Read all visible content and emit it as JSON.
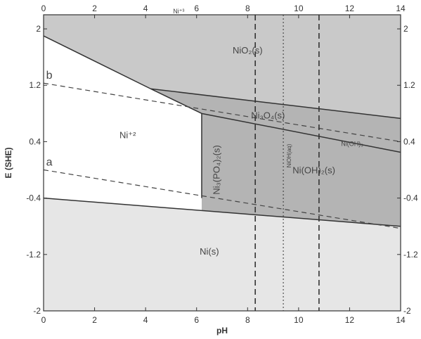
{
  "chart_data": {
    "type": "line",
    "xlabel": "pH",
    "ylabel": "E (SHE)",
    "xlim": [
      0,
      14
    ],
    "ylim": [
      -2,
      2.2
    ],
    "x_ticks": [
      "0",
      "2",
      "4",
      "6",
      "8",
      "10",
      "12",
      "14"
    ],
    "y_ticks": [
      "2",
      "1.2",
      "0.4",
      "-0.4",
      "-1.2",
      "-2"
    ],
    "grid": false,
    "colors": {
      "upper_region": "#c9c9c9",
      "middle_region": "#b4b4b4",
      "lower_region": "#e6e6e6",
      "line": "#333333"
    },
    "regions": [
      {
        "label": "NiO₂(s)",
        "x": 8,
        "y": 1.65
      },
      {
        "label": "Ni₃O₄(s)",
        "x": 8.8,
        "y": 0.73
      },
      {
        "label": "Ni(OH)₃",
        "x": 12.1,
        "y": 0.34
      },
      {
        "label": "Ni(OH)₂(s)",
        "x": 10.6,
        "y": -0.05
      },
      {
        "label": "Ni₃(PO₄)₂(s)",
        "x": 6.9,
        "y": 0.0
      },
      {
        "label": "NiOH(aq)",
        "x": 9.7,
        "y": 0.2
      },
      {
        "label": "Ni⁺²",
        "x": 3.3,
        "y": 0.45
      },
      {
        "label": "Ni(s)",
        "x": 6.5,
        "y": -1.2
      },
      {
        "label": "Ni⁺³",
        "x": 5.3,
        "y": 2.22
      }
    ],
    "water_lines": [
      {
        "name": "a",
        "x": [
          0,
          14
        ],
        "y": [
          0.0,
          -0.83
        ]
      },
      {
        "name": "b",
        "x": [
          0,
          14
        ],
        "y": [
          1.23,
          0.4
        ]
      }
    ],
    "boundaries": [
      {
        "x": [
          0,
          14
        ],
        "y": [
          -0.4,
          -0.8
        ]
      },
      {
        "x": [
          0,
          4.2
        ],
        "y": [
          1.9,
          1.15
        ]
      },
      {
        "x": [
          4.2,
          14
        ],
        "y": [
          1.15,
          0.73
        ]
      },
      {
        "x": [
          4.2,
          6.2
        ],
        "y": [
          1.15,
          0.8
        ]
      },
      {
        "x": [
          6.2,
          14
        ],
        "y": [
          0.8,
          0.25
        ]
      },
      {
        "x": [
          6.2,
          6.2
        ],
        "y": [
          0.8,
          -0.4
        ]
      }
    ],
    "vertical_lines": [
      {
        "x": 8.3,
        "style": "dashed"
      },
      {
        "x": 9.4,
        "style": "dotted"
      },
      {
        "x": 10.8,
        "style": "dashed"
      }
    ],
    "line_labels": [
      {
        "label": "a",
        "x": 0.1,
        "y": 0.06
      },
      {
        "label": "b",
        "x": 0.1,
        "y": 1.29
      }
    ]
  }
}
